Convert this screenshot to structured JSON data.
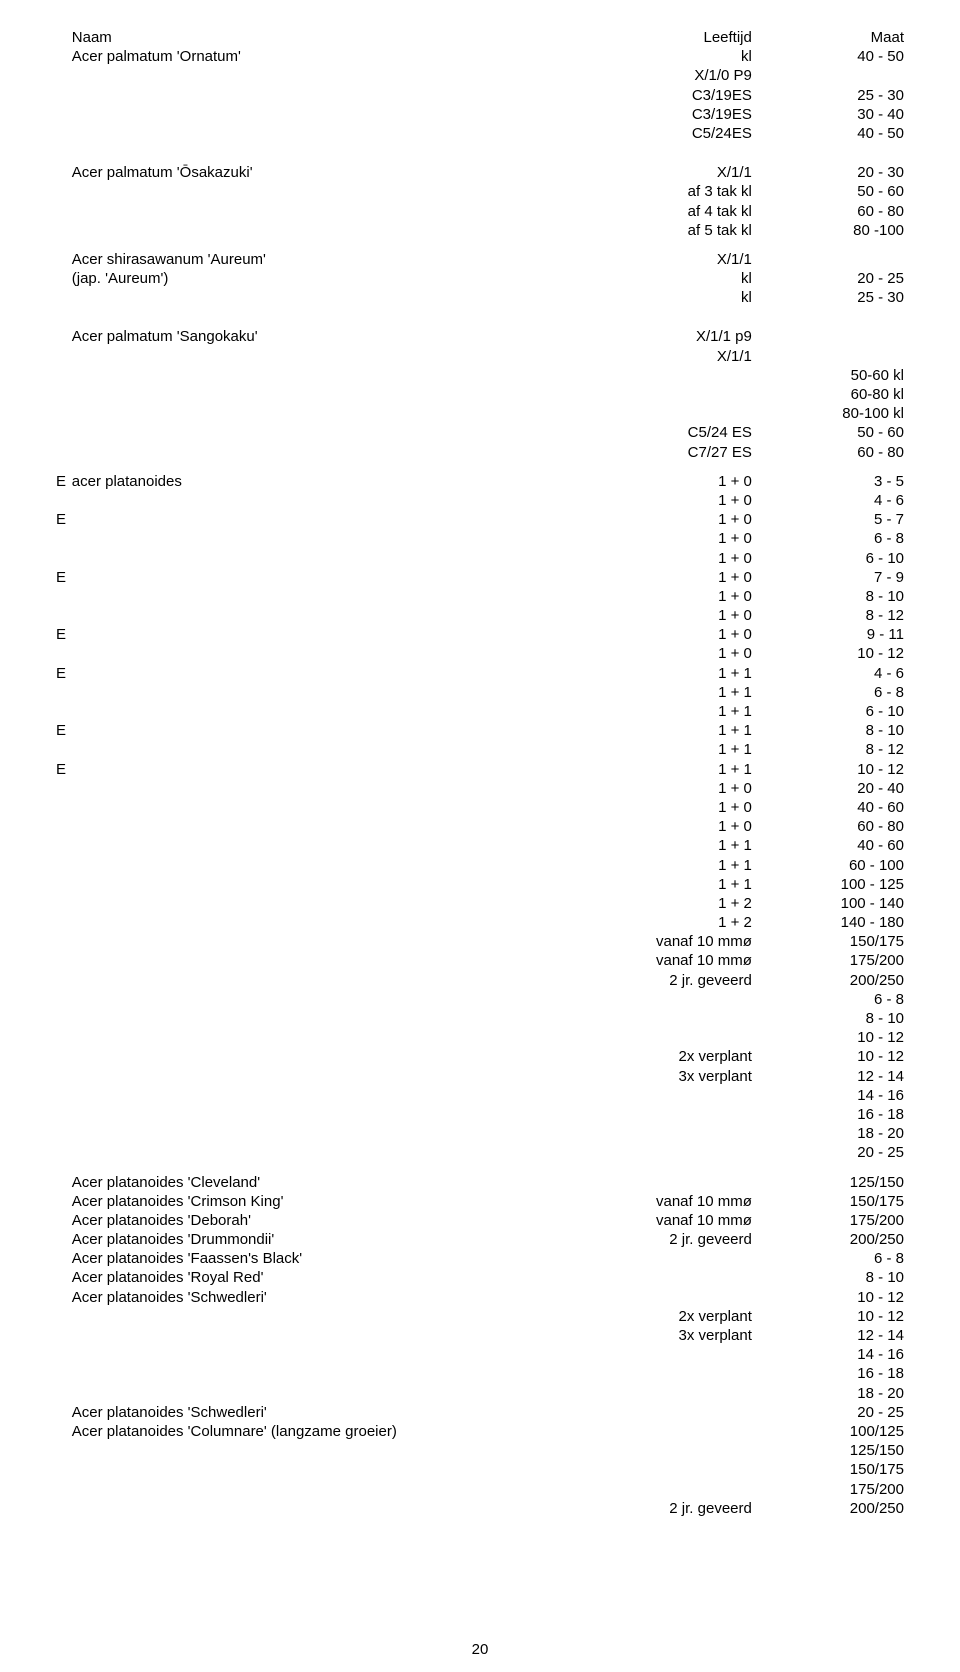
{
  "header": {
    "col1": "Naam",
    "col2": "Leeftijd",
    "col3": "Maat"
  },
  "pagenum": "20",
  "rows": [
    {
      "type": "data",
      "prefix": "",
      "indent": 1,
      "name": "Acer palmatum 'Ornatum'",
      "age": "kl",
      "size": "40 - 50"
    },
    {
      "type": "data",
      "prefix": "",
      "indent": 1,
      "name": "",
      "age": "X/1/0 P9",
      "size": ""
    },
    {
      "type": "data",
      "prefix": "",
      "indent": 1,
      "name": "",
      "age": "C3/19ES",
      "size": "25 - 30"
    },
    {
      "type": "data",
      "prefix": "",
      "indent": 1,
      "name": "",
      "age": "C3/19ES",
      "size": "30 - 40"
    },
    {
      "type": "data",
      "prefix": "",
      "indent": 1,
      "name": "",
      "age": "C5/24ES",
      "size": "40 - 50"
    },
    {
      "type": "spacer",
      "h": "md"
    },
    {
      "type": "data",
      "prefix": "",
      "indent": 1,
      "name": "Acer palmatum 'Ōsakazuki'",
      "age": "X/1/1",
      "size": "20 - 30"
    },
    {
      "type": "data",
      "prefix": "",
      "indent": 1,
      "name": "",
      "age": "af 3 tak kl",
      "size": "50 - 60"
    },
    {
      "type": "data",
      "prefix": "",
      "indent": 1,
      "name": "",
      "age": "af 4 tak kl",
      "size": "60 - 80"
    },
    {
      "type": "data",
      "prefix": "",
      "indent": 1,
      "name": "",
      "age": "af 5 tak kl",
      "size": "80 -100"
    },
    {
      "type": "spacer",
      "h": "sm"
    },
    {
      "type": "data",
      "prefix": "",
      "indent": 1,
      "name": "Acer shirasawanum 'Aureum'",
      "age": "X/1/1",
      "size": ""
    },
    {
      "type": "data",
      "prefix": "",
      "indent": 1,
      "name": "(jap. 'Aureum')",
      "age": "kl",
      "size": "20 - 25"
    },
    {
      "type": "data",
      "prefix": "",
      "indent": 1,
      "name": "",
      "age": "kl",
      "size": "25 - 30"
    },
    {
      "type": "spacer",
      "h": "md"
    },
    {
      "type": "data",
      "prefix": "",
      "indent": 1,
      "name": "Acer palmatum 'Sangokaku'",
      "age": "X/1/1 p9",
      "size": ""
    },
    {
      "type": "data",
      "prefix": "",
      "indent": 1,
      "name": "",
      "age": "X/1/1",
      "size": ""
    },
    {
      "type": "data",
      "prefix": "",
      "indent": 1,
      "name": "",
      "age": "",
      "size": "50-60 kl"
    },
    {
      "type": "data",
      "prefix": "",
      "indent": 1,
      "name": "",
      "age": "",
      "size": "60-80 kl"
    },
    {
      "type": "data",
      "prefix": "",
      "indent": 1,
      "name": "",
      "age": "",
      "size": "80-100 kl"
    },
    {
      "type": "data",
      "prefix": "",
      "indent": 1,
      "name": "",
      "age": "C5/24 ES",
      "size": "50 - 60"
    },
    {
      "type": "data",
      "prefix": "",
      "indent": 1,
      "name": "",
      "age": "C7/27 ES",
      "size": "60 - 80"
    },
    {
      "type": "spacer",
      "h": "sm"
    },
    {
      "type": "data",
      "prefix": "E",
      "indent": 1,
      "name": "acer platanoides",
      "age": "1 + 0",
      "size": "3 - 5"
    },
    {
      "type": "data",
      "prefix": "",
      "indent": 1,
      "name": "",
      "age": "1 + 0",
      "size": "4 - 6"
    },
    {
      "type": "data",
      "prefix": "E",
      "indent": 1,
      "name": "",
      "age": "1 + 0",
      "size": "5 - 7"
    },
    {
      "type": "data",
      "prefix": "",
      "indent": 1,
      "name": "",
      "age": "1 + 0",
      "size": "6 - 8"
    },
    {
      "type": "data",
      "prefix": "",
      "indent": 1,
      "name": "",
      "age": "1 + 0",
      "size": "6 - 10"
    },
    {
      "type": "data",
      "prefix": "E",
      "indent": 1,
      "name": "",
      "age": "1 + 0",
      "size": "7 - 9"
    },
    {
      "type": "data",
      "prefix": "",
      "indent": 1,
      "name": "",
      "age": "1 + 0",
      "size": "8 - 10"
    },
    {
      "type": "data",
      "prefix": "",
      "indent": 1,
      "name": "",
      "age": "1 + 0",
      "size": "8 - 12"
    },
    {
      "type": "data",
      "prefix": "E",
      "indent": 1,
      "name": "",
      "age": "1 + 0",
      "size": "9 - 11"
    },
    {
      "type": "data",
      "prefix": "",
      "indent": 1,
      "name": "",
      "age": "1 + 0",
      "size": "10 - 12"
    },
    {
      "type": "data",
      "prefix": "E",
      "indent": 1,
      "name": "",
      "age": "1 + 1",
      "size": "4 - 6"
    },
    {
      "type": "data",
      "prefix": "",
      "indent": 1,
      "name": "",
      "age": "1 + 1",
      "size": "6 - 8"
    },
    {
      "type": "data",
      "prefix": "",
      "indent": 1,
      "name": "",
      "age": "1 + 1",
      "size": "6 - 10"
    },
    {
      "type": "data",
      "prefix": "E",
      "indent": 1,
      "name": "",
      "age": "1 + 1",
      "size": "8 - 10"
    },
    {
      "type": "data",
      "prefix": "",
      "indent": 1,
      "name": "",
      "age": "1 + 1",
      "size": "8 - 12"
    },
    {
      "type": "data",
      "prefix": "E",
      "indent": 1,
      "name": "",
      "age": "1 + 1",
      "size": "10 - 12"
    },
    {
      "type": "data",
      "prefix": "",
      "indent": 1,
      "name": "",
      "age": "1 + 0",
      "size": "20 - 40"
    },
    {
      "type": "data",
      "prefix": "",
      "indent": 1,
      "name": "",
      "age": "1 + 0",
      "size": "40 - 60"
    },
    {
      "type": "data",
      "prefix": "",
      "indent": 1,
      "name": "",
      "age": "1 + 0",
      "size": "60 - 80"
    },
    {
      "type": "data",
      "prefix": "",
      "indent": 1,
      "name": "",
      "age": "1 + 1",
      "size": "40 - 60"
    },
    {
      "type": "data",
      "prefix": "",
      "indent": 1,
      "name": "",
      "age": "1 + 1",
      "size": "60 - 100"
    },
    {
      "type": "data",
      "prefix": "",
      "indent": 1,
      "name": "",
      "age": "1 + 1",
      "size": "100 - 125"
    },
    {
      "type": "data",
      "prefix": "",
      "indent": 1,
      "name": "",
      "age": "1 + 2",
      "size": "100 - 140"
    },
    {
      "type": "data",
      "prefix": "",
      "indent": 1,
      "name": "",
      "age": "1 + 2",
      "size": "140 - 180"
    },
    {
      "type": "data",
      "prefix": "",
      "indent": 1,
      "name": "",
      "age": "vanaf 10 mmø",
      "size": "150/175"
    },
    {
      "type": "data",
      "prefix": "",
      "indent": 1,
      "name": "",
      "age": "vanaf 10 mmø",
      "size": "175/200"
    },
    {
      "type": "data",
      "prefix": "",
      "indent": 1,
      "name": "",
      "age": "2 jr. geveerd",
      "size": "200/250"
    },
    {
      "type": "data",
      "prefix": "",
      "indent": 1,
      "name": "",
      "age": "",
      "size": "6 -  8"
    },
    {
      "type": "data",
      "prefix": "",
      "indent": 1,
      "name": "",
      "age": "",
      "size": "8 - 10"
    },
    {
      "type": "data",
      "prefix": "",
      "indent": 1,
      "name": "",
      "age": "",
      "size": "10 - 12"
    },
    {
      "type": "data",
      "prefix": "",
      "indent": 1,
      "name": "",
      "age": "2x verplant",
      "size": "10 - 12"
    },
    {
      "type": "data",
      "prefix": "",
      "indent": 1,
      "name": "",
      "age": "3x verplant",
      "size": "12 - 14"
    },
    {
      "type": "data",
      "prefix": "",
      "indent": 1,
      "name": "",
      "age": "",
      "size": "14 - 16"
    },
    {
      "type": "data",
      "prefix": "",
      "indent": 1,
      "name": "",
      "age": "",
      "size": "16 - 18"
    },
    {
      "type": "data",
      "prefix": "",
      "indent": 1,
      "name": "",
      "age": "",
      "size": "18 - 20"
    },
    {
      "type": "data",
      "prefix": "",
      "indent": 1,
      "name": "",
      "age": "",
      "size": "20 - 25"
    },
    {
      "type": "spacer",
      "h": "sm"
    },
    {
      "type": "data",
      "prefix": "",
      "indent": 1,
      "name": "Acer platanoides 'Cleveland'",
      "age": "",
      "size": "125/150"
    },
    {
      "type": "data",
      "prefix": "",
      "indent": 1,
      "name": "Acer platanoides 'Crimson King'",
      "age": "vanaf 10 mmø",
      "size": "150/175"
    },
    {
      "type": "data",
      "prefix": "",
      "indent": 1,
      "name": "Acer platanoides 'Deborah'",
      "age": "vanaf 10 mmø",
      "size": "175/200"
    },
    {
      "type": "data",
      "prefix": "",
      "indent": 1,
      "name": "Acer platanoides 'Drummondii'",
      "age": "2 jr. geveerd",
      "size": "200/250"
    },
    {
      "type": "data",
      "prefix": "",
      "indent": 1,
      "name": "Acer platanoides 'Faassen's Black'",
      "age": "",
      "size": "6 -  8"
    },
    {
      "type": "data",
      "prefix": "",
      "indent": 1,
      "name": "Acer platanoides 'Royal Red'",
      "age": "",
      "size": "8 - 10"
    },
    {
      "type": "data",
      "prefix": "",
      "indent": 1,
      "name": "Acer platanoides 'Schwedleri'",
      "age": "",
      "size": "10 - 12"
    },
    {
      "type": "data",
      "prefix": "",
      "indent": 1,
      "name": "",
      "age": "2x verplant",
      "size": "10 - 12"
    },
    {
      "type": "data",
      "prefix": "",
      "indent": 1,
      "name": "",
      "age": "3x verplant",
      "size": "12 - 14"
    },
    {
      "type": "data",
      "prefix": "",
      "indent": 1,
      "name": "",
      "age": "",
      "size": "14 - 16"
    },
    {
      "type": "data",
      "prefix": "",
      "indent": 1,
      "name": "",
      "age": "",
      "size": "16 - 18"
    },
    {
      "type": "data",
      "prefix": "",
      "indent": 1,
      "name": "",
      "age": "",
      "size": "18 - 20"
    },
    {
      "type": "data",
      "prefix": "",
      "indent": 1,
      "name": "Acer platanoides 'Schwedleri'",
      "age": "",
      "size": "20 - 25"
    },
    {
      "type": "data",
      "prefix": "",
      "indent": 1,
      "name": "Acer platanoides 'Columnare' (langzame groeier)",
      "age": "",
      "size": "100/125"
    },
    {
      "type": "data",
      "prefix": "",
      "indent": 1,
      "name": "",
      "age": "",
      "size": "125/150"
    },
    {
      "type": "data",
      "prefix": "",
      "indent": 1,
      "name": "",
      "age": "",
      "size": "150/175"
    },
    {
      "type": "data",
      "prefix": "",
      "indent": 1,
      "name": "",
      "age": "",
      "size": "175/200"
    },
    {
      "type": "data",
      "prefix": "",
      "indent": 1,
      "name": "",
      "age": "2 jr. geveerd",
      "size": "200/250"
    }
  ]
}
